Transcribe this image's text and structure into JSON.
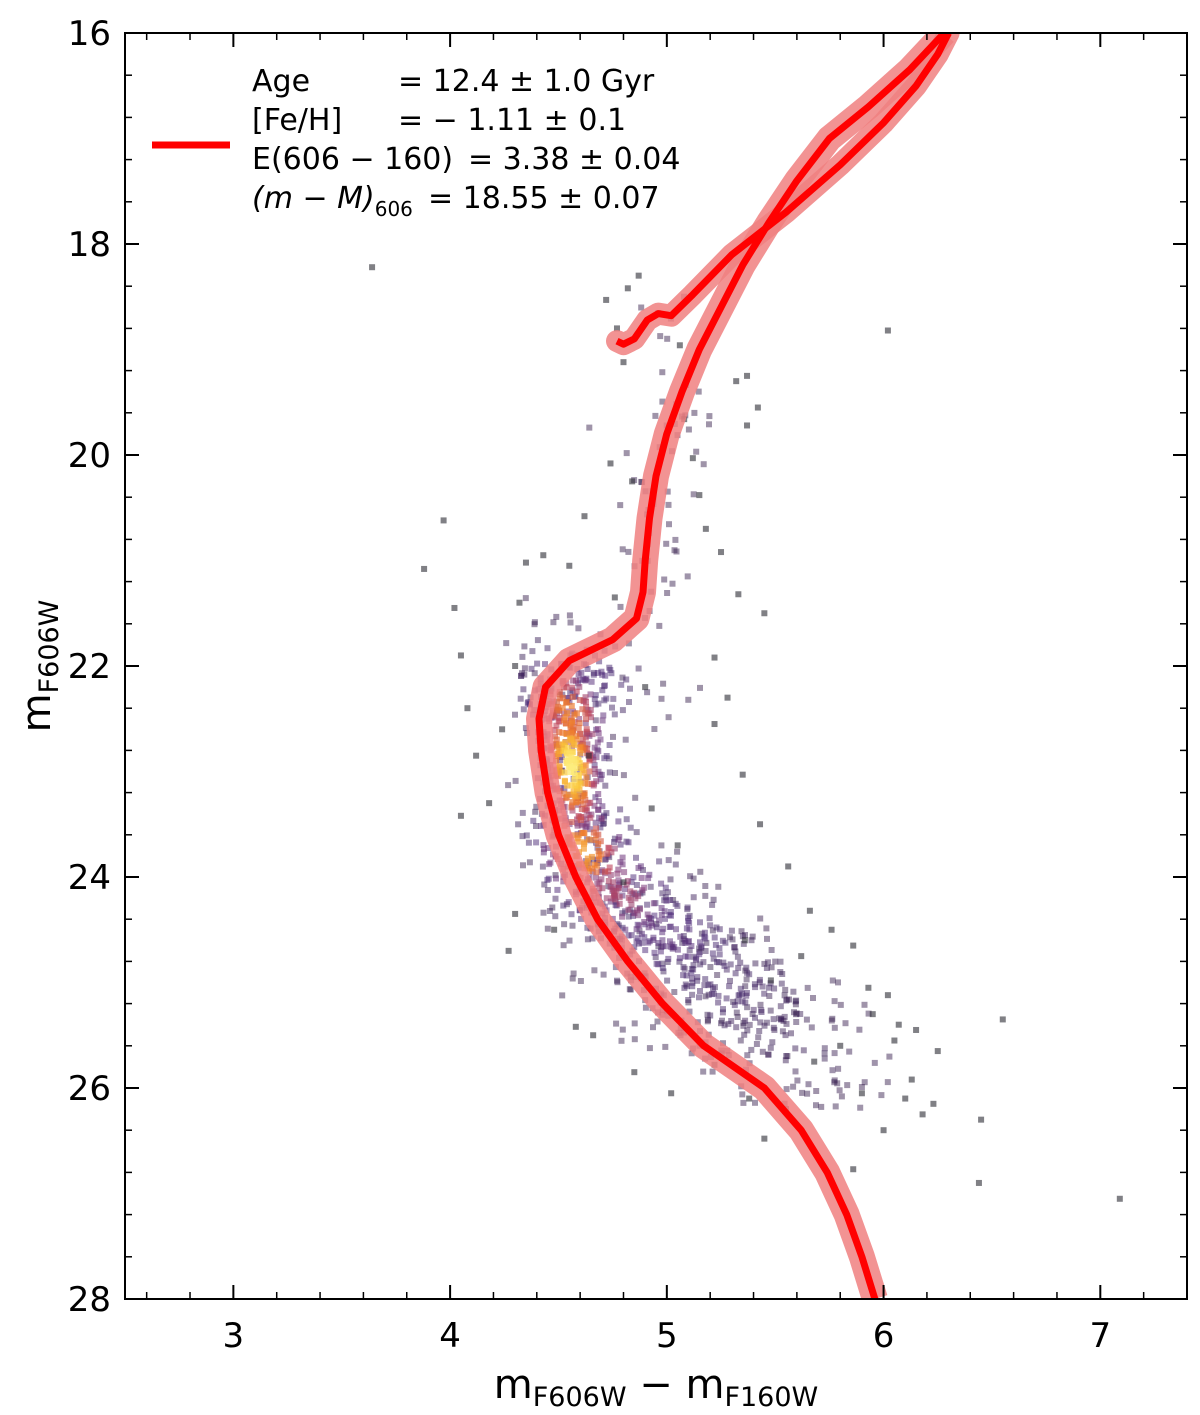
{
  "chart_data": {
    "type": "scatter",
    "title": "",
    "xlabel": {
      "main": "m",
      "sub1": "F606W",
      "minus": " − m",
      "sub2": "F160W"
    },
    "ylabel": {
      "main": "m",
      "sub": "F606W"
    },
    "xlim": [
      2.5,
      7.4
    ],
    "ylim": [
      28,
      16
    ],
    "y_inverted": true,
    "xticks": [
      3,
      4,
      5,
      6,
      7
    ],
    "xtick_labels": [
      "3",
      "4",
      "5",
      "6",
      "7"
    ],
    "yticks": [
      16,
      18,
      20,
      22,
      24,
      26,
      28
    ],
    "ytick_labels": [
      "16",
      "18",
      "20",
      "22",
      "24",
      "26",
      "28"
    ],
    "tick_direction": "in",
    "minor_ticks": true,
    "grid": false,
    "legend": {
      "placement": "top-left",
      "line_color": "#ff0000",
      "lines": [
        {
          "label": "Age",
          "value": "= 12.4 ± 1.0 Gyr"
        },
        {
          "label": "[Fe/H]",
          "value": "= − 1.11 ± 0.1"
        },
        {
          "label": "E(606 − 160)",
          "value": "= 3.38 ± 0.04"
        },
        {
          "label_prefix": "(m − M)",
          "label_sub": "606",
          "value": "= 18.55 ± 0.07"
        }
      ]
    },
    "series": [
      {
        "kind": "isochrone",
        "color": "#ff0000",
        "band_color": "#f08080",
        "points": [
          [
            5.96,
            28.0
          ],
          [
            5.9,
            27.6
          ],
          [
            5.83,
            27.2
          ],
          [
            5.74,
            26.8
          ],
          [
            5.62,
            26.4
          ],
          [
            5.45,
            26.0
          ],
          [
            5.17,
            25.6
          ],
          [
            4.98,
            25.2
          ],
          [
            4.82,
            24.8
          ],
          [
            4.68,
            24.4
          ],
          [
            4.58,
            24.0
          ],
          [
            4.5,
            23.6
          ],
          [
            4.45,
            23.2
          ],
          [
            4.42,
            22.8
          ],
          [
            4.41,
            22.5
          ],
          [
            4.44,
            22.2
          ],
          [
            4.55,
            21.95
          ],
          [
            4.75,
            21.75
          ],
          [
            4.86,
            21.55
          ],
          [
            4.89,
            21.3
          ],
          [
            4.9,
            21.0
          ],
          [
            4.92,
            20.6
          ],
          [
            4.95,
            20.2
          ],
          [
            5.0,
            19.8
          ],
          [
            5.07,
            19.4
          ],
          [
            5.15,
            19.0
          ],
          [
            5.25,
            18.6
          ],
          [
            5.35,
            18.2
          ],
          [
            5.47,
            17.8
          ],
          [
            5.6,
            17.4
          ],
          [
            5.75,
            17.0
          ],
          [
            5.93,
            16.7
          ],
          [
            6.12,
            16.35
          ],
          [
            6.28,
            16.0
          ]
        ],
        "hb_branch": [
          [
            4.77,
            18.92
          ],
          [
            4.8,
            18.95
          ],
          [
            4.85,
            18.9
          ],
          [
            4.91,
            18.72
          ],
          [
            4.96,
            18.66
          ],
          [
            5.02,
            18.68
          ],
          [
            5.12,
            18.48
          ],
          [
            5.3,
            18.1
          ],
          [
            5.55,
            17.7
          ],
          [
            5.8,
            17.25
          ],
          [
            6.0,
            16.85
          ],
          [
            6.15,
            16.5
          ],
          [
            6.25,
            16.2
          ],
          [
            6.3,
            16.0
          ]
        ]
      },
      {
        "kind": "stars",
        "density_colormap": [
          "#2a1140",
          "#4b2a77",
          "#7a3a7d",
          "#c0485f",
          "#ee7a2e",
          "#fbc83a",
          "#fefd9a"
        ],
        "outliers": [
          [
            3.64,
            18.22
          ],
          [
            3.88,
            21.08
          ],
          [
            3.97,
            20.62
          ],
          [
            4.02,
            21.45
          ],
          [
            4.05,
            21.9
          ],
          [
            4.12,
            22.85
          ],
          [
            4.05,
            23.42
          ],
          [
            4.27,
            24.7
          ],
          [
            4.08,
            22.4
          ],
          [
            4.58,
            25.42
          ],
          [
            4.72,
            18.53
          ],
          [
            4.77,
            18.8
          ],
          [
            4.8,
            19.12
          ],
          [
            4.82,
            18.42
          ],
          [
            4.87,
            18.3
          ],
          [
            5.06,
            18.96
          ],
          [
            6.02,
            18.82
          ],
          [
            5.32,
            19.3
          ],
          [
            5.37,
            19.25
          ],
          [
            5.42,
            19.55
          ],
          [
            5.37,
            19.72
          ],
          [
            5.08,
            19.66
          ],
          [
            5.12,
            20.03
          ],
          [
            5.15,
            20.38
          ],
          [
            5.18,
            20.7
          ],
          [
            5.25,
            20.92
          ],
          [
            5.33,
            21.32
          ],
          [
            5.45,
            21.5
          ],
          [
            5.22,
            21.92
          ],
          [
            5.28,
            22.3
          ],
          [
            5.22,
            22.55
          ],
          [
            5.35,
            23.03
          ],
          [
            5.43,
            23.5
          ],
          [
            5.56,
            23.9
          ],
          [
            5.66,
            24.32
          ],
          [
            5.76,
            24.5
          ],
          [
            5.86,
            24.65
          ],
          [
            5.93,
            25.05
          ],
          [
            6.02,
            25.12
          ],
          [
            6.07,
            25.4
          ],
          [
            6.13,
            25.92
          ],
          [
            6.18,
            26.25
          ],
          [
            6.23,
            26.15
          ],
          [
            6.45,
            26.3
          ],
          [
            6.44,
            26.9
          ],
          [
            6.55,
            25.35
          ],
          [
            7.09,
            27.05
          ],
          [
            5.86,
            26.77
          ],
          [
            5.45,
            26.48
          ],
          [
            4.8,
            24.05
          ],
          [
            4.93,
            23.35
          ],
          [
            5.05,
            23.7
          ],
          [
            4.64,
            22.85
          ],
          [
            4.9,
            22.2
          ],
          [
            4.76,
            21.35
          ],
          [
            4.35,
            21.02
          ],
          [
            4.43,
            20.95
          ],
          [
            4.55,
            21.05
          ],
          [
            4.32,
            21.4
          ],
          [
            4.62,
            20.58
          ],
          [
            4.74,
            20.08
          ],
          [
            4.84,
            20.25
          ],
          [
            4.3,
            22.0
          ],
          [
            4.24,
            22.6
          ],
          [
            4.18,
            23.3
          ],
          [
            4.3,
            24.35
          ],
          [
            4.48,
            24.5
          ],
          [
            4.66,
            25.5
          ],
          [
            4.85,
            25.85
          ],
          [
            5.02,
            26.05
          ],
          [
            5.22,
            25.78
          ],
          [
            5.38,
            26.1
          ],
          [
            5.55,
            26.2
          ],
          [
            5.68,
            25.75
          ],
          [
            5.8,
            25.6
          ],
          [
            5.95,
            25.3
          ],
          [
            6.05,
            25.55
          ],
          [
            6.15,
            25.45
          ],
          [
            6.25,
            25.65
          ],
          [
            5.62,
            24.75
          ],
          [
            5.48,
            24.98
          ],
          [
            5.36,
            24.6
          ],
          [
            5.9,
            26.05
          ],
          [
            6.0,
            26.4
          ],
          [
            6.1,
            26.1
          ]
        ],
        "clumps": [
          {
            "cx": 4.56,
            "cy": 22.95,
            "sx": 0.075,
            "sy": 0.38,
            "n": 260,
            "heat": 0.95
          },
          {
            "cx": 4.55,
            "cy": 22.45,
            "sx": 0.1,
            "sy": 0.3,
            "n": 150,
            "heat": 0.7
          },
          {
            "cx": 4.62,
            "cy": 23.75,
            "sx": 0.12,
            "sy": 0.35,
            "n": 190,
            "heat": 0.75
          },
          {
            "cx": 4.78,
            "cy": 24.15,
            "sx": 0.16,
            "sy": 0.3,
            "n": 150,
            "heat": 0.45
          },
          {
            "cx": 5.02,
            "cy": 24.6,
            "sx": 0.2,
            "sy": 0.32,
            "n": 160,
            "heat": 0.22
          },
          {
            "cx": 5.25,
            "cy": 25.05,
            "sx": 0.24,
            "sy": 0.3,
            "n": 150,
            "heat": 0.12
          },
          {
            "cx": 5.55,
            "cy": 25.6,
            "sx": 0.28,
            "sy": 0.35,
            "n": 120,
            "heat": 0.05
          },
          {
            "cx": 4.62,
            "cy": 22.1,
            "sx": 0.16,
            "sy": 0.25,
            "n": 70,
            "heat": 0.2
          },
          {
            "cx": 4.95,
            "cy": 20.9,
            "sx": 0.08,
            "sy": 0.55,
            "n": 40,
            "heat": 0.02
          },
          {
            "cx": 5.08,
            "cy": 19.7,
            "sx": 0.08,
            "sy": 0.45,
            "n": 25,
            "heat": 0.0
          }
        ]
      }
    ]
  }
}
